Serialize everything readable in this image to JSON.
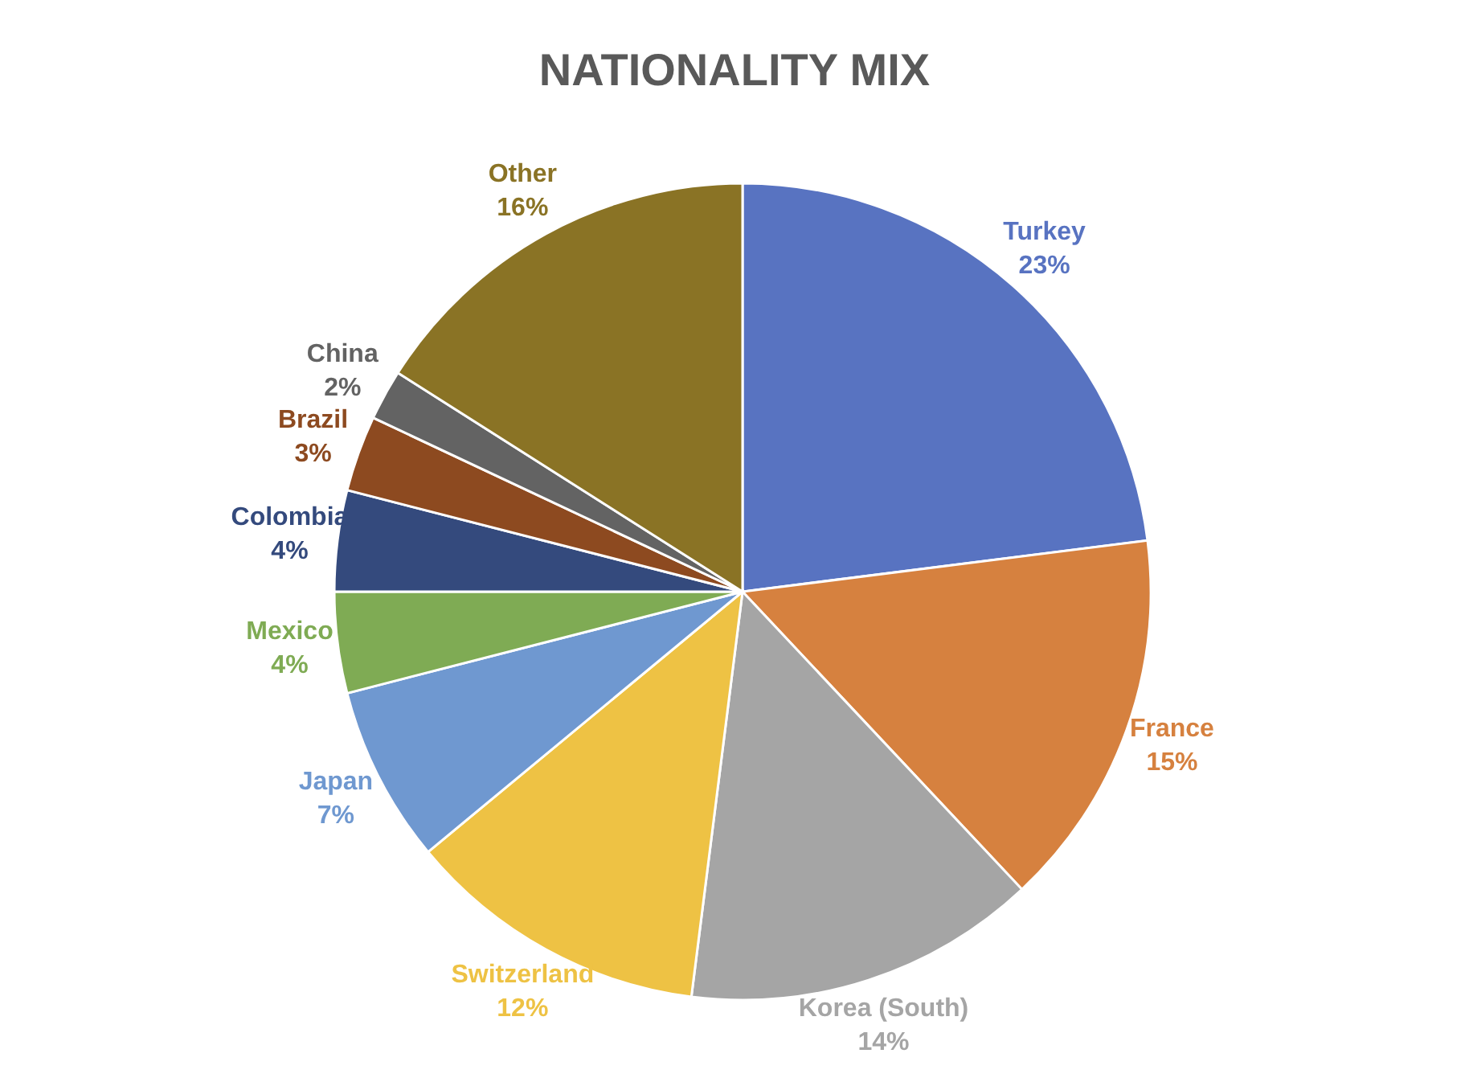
{
  "chart_data": {
    "type": "pie",
    "title": "NATIONALITY MIX",
    "categories": [
      "Turkey",
      "France",
      "Korea (South)",
      "Switzerland",
      "Japan",
      "Mexico",
      "Colombia",
      "Brazil",
      "China",
      "Other"
    ],
    "values": [
      23,
      15,
      14,
      12,
      7,
      4,
      4,
      3,
      2,
      16
    ],
    "value_labels": [
      "23%",
      "15%",
      "14%",
      "12%",
      "7%",
      "4%",
      "4%",
      "3%",
      "2%",
      "16%"
    ],
    "colors": [
      "#5873c1",
      "#d6813f",
      "#a5a5a5",
      "#eec244",
      "#6f98d0",
      "#7fab54",
      "#344a7d",
      "#8d4a20",
      "#636363",
      "#8a7325"
    ],
    "legend": false
  }
}
